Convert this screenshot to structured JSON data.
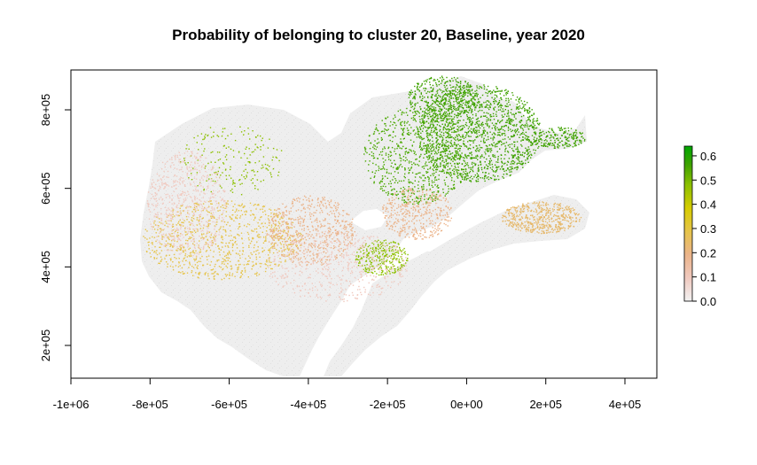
{
  "title": "Probability of belonging to cluster 20, Baseline, year 2020",
  "map": {
    "x_axis": {
      "ticks": [
        -1000000,
        -800000,
        -600000,
        -400000,
        -200000,
        0,
        200000,
        400000
      ],
      "tick_labels": [
        "-1e+06",
        "-8e+05",
        "-6e+05",
        "-4e+05",
        "-2e+05",
        "0e+00",
        "2e+05",
        "4e+05"
      ]
    },
    "y_axis": {
      "ticks": [
        200000,
        400000,
        600000,
        800000
      ],
      "tick_labels": [
        "2e+05",
        "4e+05",
        "6e+05",
        "8e+05"
      ]
    },
    "legend": {
      "ticks": [
        0.0,
        0.1,
        0.2,
        0.3,
        0.4,
        0.5,
        0.6
      ],
      "tick_labels": [
        "0.0",
        "0.1",
        "0.2",
        "0.3",
        "0.4",
        "0.5",
        "0.6"
      ],
      "range": [
        0.0,
        0.64
      ],
      "colors": [
        "#f2f2f2",
        "#f0c9bf",
        "#ebb48a",
        "#e6c44a",
        "#d6cc00",
        "#8cc000",
        "#3fa200",
        "#00a600"
      ]
    }
  }
}
